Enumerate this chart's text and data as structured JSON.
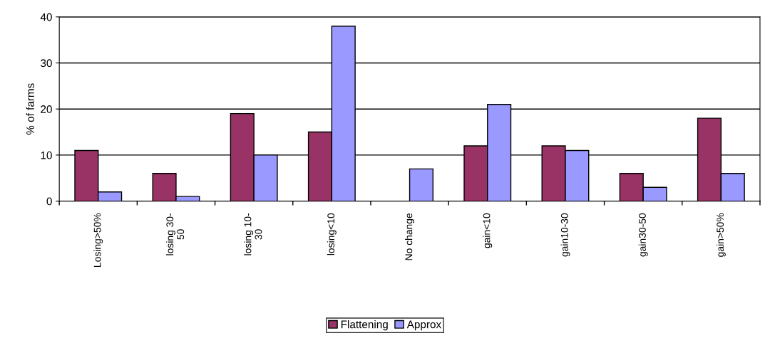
{
  "chart_data": {
    "type": "bar",
    "ylabel": "% of farms",
    "categories": [
      "Losing>50%",
      "losing 30-\n50",
      "losing 10-\n30",
      "losing<10",
      "No change",
      "gain<10",
      "gain10-30",
      "gain30-50",
      "gain>50%"
    ],
    "series": [
      {
        "name": "Flattening",
        "color": "#993366",
        "values": [
          11,
          6,
          19,
          15,
          null,
          12,
          12,
          6,
          18
        ]
      },
      {
        "name": "Approx",
        "color": "#9999ff",
        "values": [
          2,
          1,
          10,
          38,
          7,
          21,
          11,
          3,
          6
        ]
      }
    ],
    "ylim": [
      0,
      40
    ],
    "yticks": [
      0,
      10,
      20,
      30,
      40
    ],
    "grid": "y",
    "legend": "bottom"
  }
}
